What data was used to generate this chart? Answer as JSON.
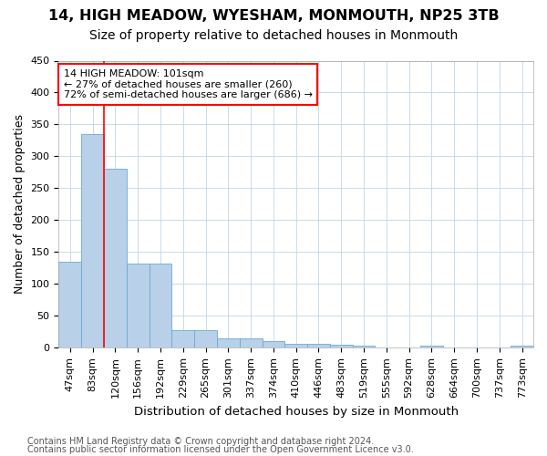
{
  "title": "14, HIGH MEADOW, WYESHAM, MONMOUTH, NP25 3TB",
  "subtitle": "Size of property relative to detached houses in Monmouth",
  "xlabel": "Distribution of detached houses by size in Monmouth",
  "ylabel": "Number of detached properties",
  "footer_line1": "Contains HM Land Registry data © Crown copyright and database right 2024.",
  "footer_line2": "Contains public sector information licensed under the Open Government Licence v3.0.",
  "bar_labels": [
    "47sqm",
    "83sqm",
    "120sqm",
    "156sqm",
    "192sqm",
    "229sqm",
    "265sqm",
    "301sqm",
    "337sqm",
    "374sqm",
    "410sqm",
    "446sqm",
    "483sqm",
    "519sqm",
    "555sqm",
    "592sqm",
    "628sqm",
    "664sqm",
    "700sqm",
    "737sqm",
    "773sqm"
  ],
  "bar_values": [
    135,
    335,
    280,
    132,
    132,
    27,
    27,
    15,
    15,
    10,
    6,
    6,
    5,
    3,
    0,
    0,
    4,
    0,
    0,
    0,
    3
  ],
  "bar_color": "#b8d0e8",
  "bar_edgecolor": "#6aaad4",
  "red_line_x": 1.5,
  "annotation_line1": "14 HIGH MEADOW: 101sqm",
  "annotation_line2": "← 27% of detached houses are smaller (260)",
  "annotation_line3": "72% of semi-detached houses are larger (686) →",
  "annotation_box_color": "white",
  "annotation_box_edgecolor": "red",
  "red_line_color": "red",
  "ylim": [
    0,
    450
  ],
  "yticks": [
    0,
    50,
    100,
    150,
    200,
    250,
    300,
    350,
    400,
    450
  ],
  "title_fontsize": 11.5,
  "subtitle_fontsize": 10,
  "xlabel_fontsize": 9.5,
  "ylabel_fontsize": 9,
  "tick_fontsize": 8,
  "annotation_fontsize": 8,
  "footer_fontsize": 7,
  "background_color": "white",
  "grid_color": "#c0d4e8"
}
